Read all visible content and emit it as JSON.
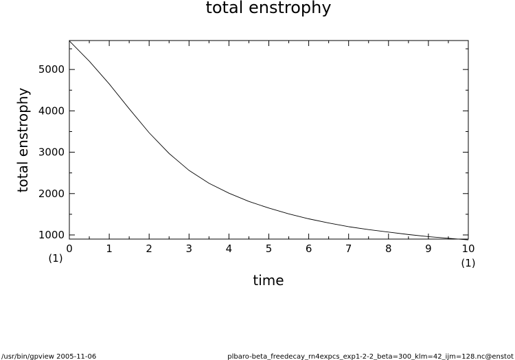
{
  "chart_data": {
    "type": "line",
    "title": "total enstrophy",
    "xlabel": "time",
    "ylabel": "total enstrophy",
    "x_unit_label": "(1)",
    "x_unit_label_right": "(1)",
    "xlim": [
      0,
      10
    ],
    "ylim": [
      900,
      5700
    ],
    "x_ticks": [
      "0",
      "1",
      "2",
      "3",
      "4",
      "5",
      "6",
      "7",
      "8",
      "9",
      "10"
    ],
    "y_ticks": [
      "1000",
      "2000",
      "3000",
      "4000",
      "5000"
    ],
    "grid": false,
    "series": [
      {
        "x": [
          0,
          0.5,
          1,
          1.5,
          2,
          2.5,
          3,
          3.5,
          4,
          4.5,
          5,
          5.5,
          6,
          6.5,
          7,
          7.5,
          8,
          8.5,
          9,
          9.5,
          10
        ],
        "values": [
          5690,
          5200,
          4650,
          4050,
          3470,
          2970,
          2560,
          2250,
          2010,
          1810,
          1650,
          1510,
          1390,
          1290,
          1200,
          1130,
          1070,
          1010,
          960,
          920,
          880
        ]
      }
    ]
  },
  "footer": {
    "left": "/usr/bin/gpview   2005-11-06",
    "right": "plbaro-beta_freedecay_rn4expcs_exp1-2-2_beta=300_klm=42_ijm=128.nc@enstot"
  }
}
